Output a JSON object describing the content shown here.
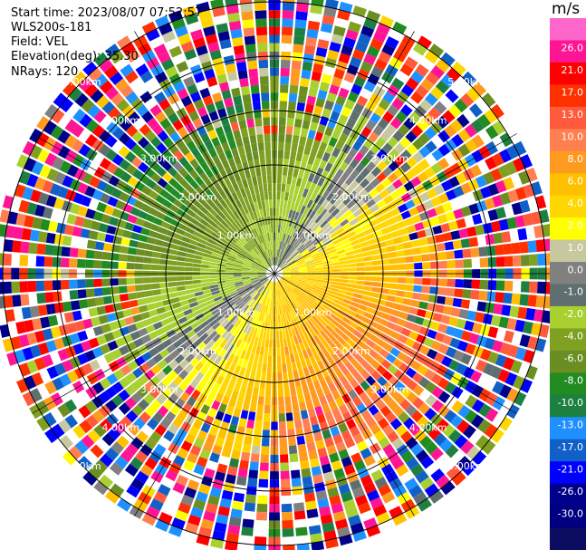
{
  "header": {
    "start_time": "Start time: 2023/08/07 07:52:57",
    "instrument": "WLS200s-181",
    "field": "Field: VEL",
    "elevation": "Elevation(deg): 35.30",
    "nrays": "NRays: 120"
  },
  "colorbar": {
    "unit": "m/s",
    "ticks": [
      "26.0",
      "21.0",
      "17.0",
      "13.0",
      "10.0",
      "8.0",
      "6.0",
      "4.0",
      "2.0",
      "1.0",
      "0.0",
      "-1.0",
      "-2.0",
      "-4.0",
      "-6.0",
      "-8.0",
      "-10.0",
      "-13.0",
      "-17.0",
      "-21.0",
      "-26.0",
      "-30.0"
    ],
    "colors": [
      "#ff66cc",
      "#ff1493",
      "#ff0000",
      "#ff3000",
      "#ff5a3c",
      "#ff7f50",
      "#ff9a20",
      "#ffc000",
      "#ffd700",
      "#ffff00",
      "#c8c8a0",
      "#808080",
      "#5f6f6f",
      "#a8d030",
      "#7fa020",
      "#6b8e23",
      "#228b22",
      "#1e8040",
      "#1e90ff",
      "#1060c8",
      "#0000ff",
      "#00008b",
      "#000080",
      "#0c0c60"
    ]
  },
  "chart_data": {
    "type": "heatmap",
    "title": "",
    "field": "VEL",
    "units": "m/s",
    "elevation_deg": 35.3,
    "n_rays": 120,
    "range_rings_km": [
      1.0,
      2.0,
      3.0,
      4.0,
      5.0
    ],
    "range_ring_labels": [
      "1.00km",
      "2.00km",
      "3.00km",
      "4.00km",
      "5.00km"
    ],
    "velocity_pattern": {
      "toward_negative_sector_deg": 315,
      "away_positive_sector_deg": 135,
      "near_range_max_abs_ms": 8,
      "far_range": "noisy, random values from -30 to 26"
    },
    "grid": true
  }
}
